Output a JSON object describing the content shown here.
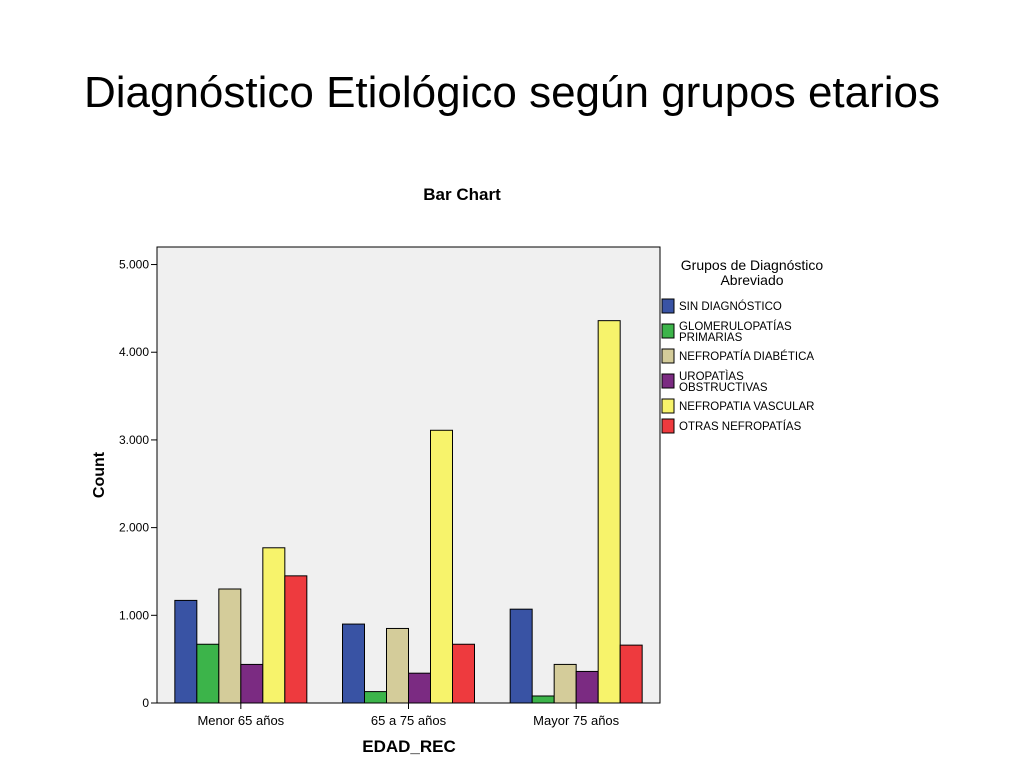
{
  "slide": {
    "title": "Diagnóstico Etiológico según grupos etarios"
  },
  "chart_data": {
    "type": "bar",
    "title": "Bar Chart",
    "xlabel": "EDAD_REC",
    "ylabel": "Count",
    "categories": [
      "Menor 65 años",
      "65 a 75 años",
      "Mayor 75 años"
    ],
    "ylim": [
      0,
      5200
    ],
    "yticks": [
      0,
      1000,
      2000,
      3000,
      4000,
      5000
    ],
    "ytick_labels": [
      "0",
      "1.000",
      "2.000",
      "3.000",
      "4.000",
      "5.000"
    ],
    "legend": {
      "title_lines": [
        "Grupos de Diagnóstico",
        "Abreviado"
      ],
      "placement": "right"
    },
    "series": [
      {
        "name_lines": [
          "SIN DIAGNÓSTICO"
        ],
        "color": "#3953a4",
        "values": [
          1170,
          900,
          1070
        ]
      },
      {
        "name_lines": [
          "GLOMERULOPATÍAS",
          "PRIMARIAS"
        ],
        "color": "#3cb44a",
        "values": [
          670,
          130,
          80
        ]
      },
      {
        "name_lines": [
          "NEFROPATÍA DIABÉTICA"
        ],
        "color": "#d4cc9a",
        "values": [
          1300,
          850,
          440
        ]
      },
      {
        "name_lines": [
          "UROPATÌAS",
          "OBSTRUCTIVAS"
        ],
        "color": "#7b2b82",
        "values": [
          440,
          340,
          360
        ]
      },
      {
        "name_lines": [
          "NEFROPATIA VASCULAR"
        ],
        "color": "#f7f36b",
        "values": [
          1770,
          3110,
          4360
        ]
      },
      {
        "name_lines": [
          "OTRAS NEFROPATÍAS"
        ],
        "color": "#ee3a3e",
        "values": [
          1450,
          670,
          660
        ]
      }
    ]
  }
}
